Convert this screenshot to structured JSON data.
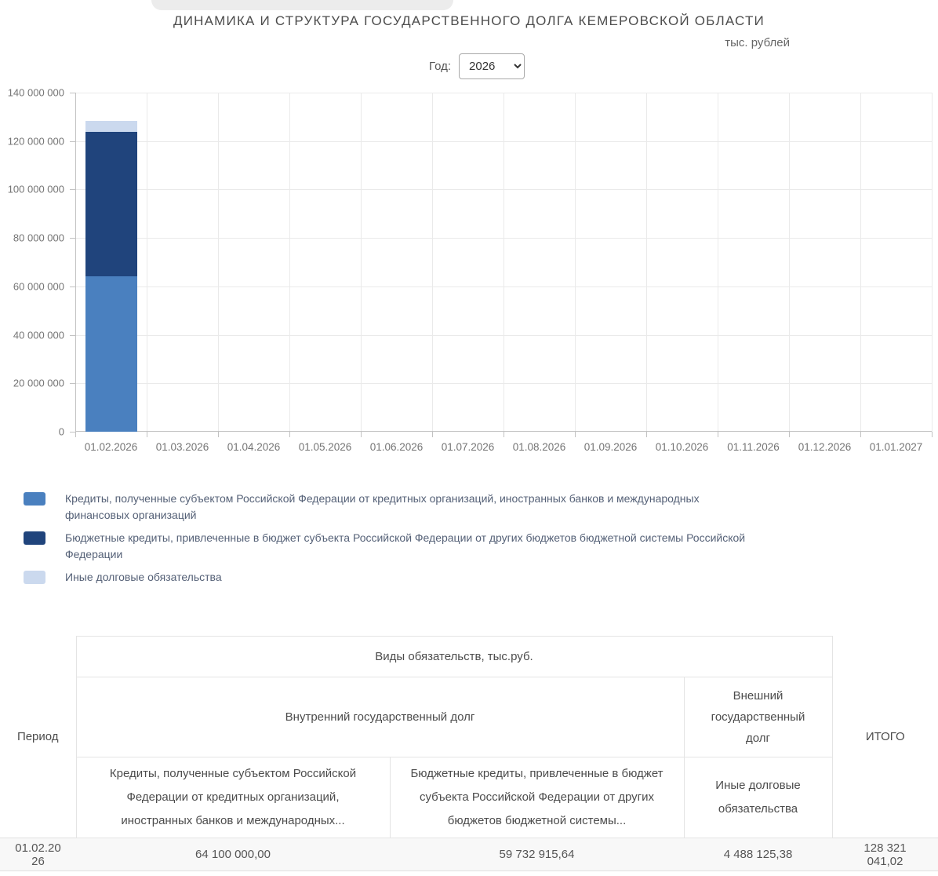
{
  "header": {
    "title": "ДИНАМИКА И СТРУКТУРА ГОСУДАРСТВЕННОГО ДОЛГА КЕМЕРОВСКОЙ ОБЛАСТИ",
    "units": "тыс. рублей",
    "year_label": "Год:",
    "year_value": "2026"
  },
  "chart_data": {
    "type": "bar",
    "stacked": true,
    "title": "ДИНАМИКА И СТРУКТУРА ГОСУДАРСТВЕННОГО ДОЛГА КЕМЕРОВСКОЙ ОБЛАСТИ",
    "units": "тыс. рублей",
    "categories": [
      "01.02.2026",
      "01.03.2026",
      "01.04.2026",
      "01.05.2026",
      "01.06.2026",
      "01.07.2026",
      "01.08.2026",
      "01.09.2026",
      "01.10.2026",
      "01.11.2026",
      "01.12.2026",
      "01.01.2027"
    ],
    "series": [
      {
        "name": "Кредиты, полученные субъектом Российской Федерации от кредитных организаций, иностранных банков и международных финансовых организаций",
        "color": "#4a80bf",
        "values": [
          64100000.0,
          0,
          0,
          0,
          0,
          0,
          0,
          0,
          0,
          0,
          0,
          0
        ]
      },
      {
        "name": "Бюджетные кредиты, привлеченные в бюджет субъекта Российской Федерации от других бюджетов бюджетной системы Российской Федерации",
        "color": "#20447c",
        "values": [
          59732915.64,
          0,
          0,
          0,
          0,
          0,
          0,
          0,
          0,
          0,
          0,
          0
        ]
      },
      {
        "name": "Иные долговые обязательства",
        "color": "#cbd9ee",
        "values": [
          4488125.38,
          0,
          0,
          0,
          0,
          0,
          0,
          0,
          0,
          0,
          0,
          0
        ]
      }
    ],
    "ylim": [
      0,
      140000000
    ],
    "ytick_step": 20000000,
    "ytick_labels": [
      "0",
      "20 000 000",
      "40 000 000",
      "60 000 000",
      "80 000 000",
      "100 000 000",
      "120 000 000",
      "140 000 000"
    ],
    "grid": true,
    "legend_position": "bottom-left"
  },
  "legend": {
    "items": [
      {
        "label": "Кредиты, полученные субъектом Российской Федерации от кредитных организаций, иностранных банков и международных финансовых организаций",
        "color": "#4a80bf"
      },
      {
        "label": "Бюджетные кредиты, привлеченные в бюджет субъекта Российской Федерации от других бюджетов бюджетной системы Российской Федерации",
        "color": "#20447c"
      },
      {
        "label": "Иные долговые обязательства",
        "color": "#cbd9ee"
      }
    ]
  },
  "table": {
    "header": {
      "period": "Период",
      "group": "Виды обязательств, тыс.руб.",
      "internal": "Внутренний государственный долг",
      "external": "Внешний государственный долг",
      "col1": "Кредиты, полученные субъектом Российской Федерации от кредитных организаций, иностранных банков и международных...",
      "col2": "Бюджетные кредиты, привлеченные в бюджет субъекта Российской Федерации от других бюджетов бюджетной системы...",
      "col3": "Иные долговые обязательства",
      "total": "ИТОГО"
    },
    "rows": [
      {
        "period": "01.02.2026",
        "col1": "64 100 000,00",
        "col2": "59 732 915,64",
        "col3": "4 488 125,38",
        "total": "128 321 041,02"
      }
    ]
  }
}
